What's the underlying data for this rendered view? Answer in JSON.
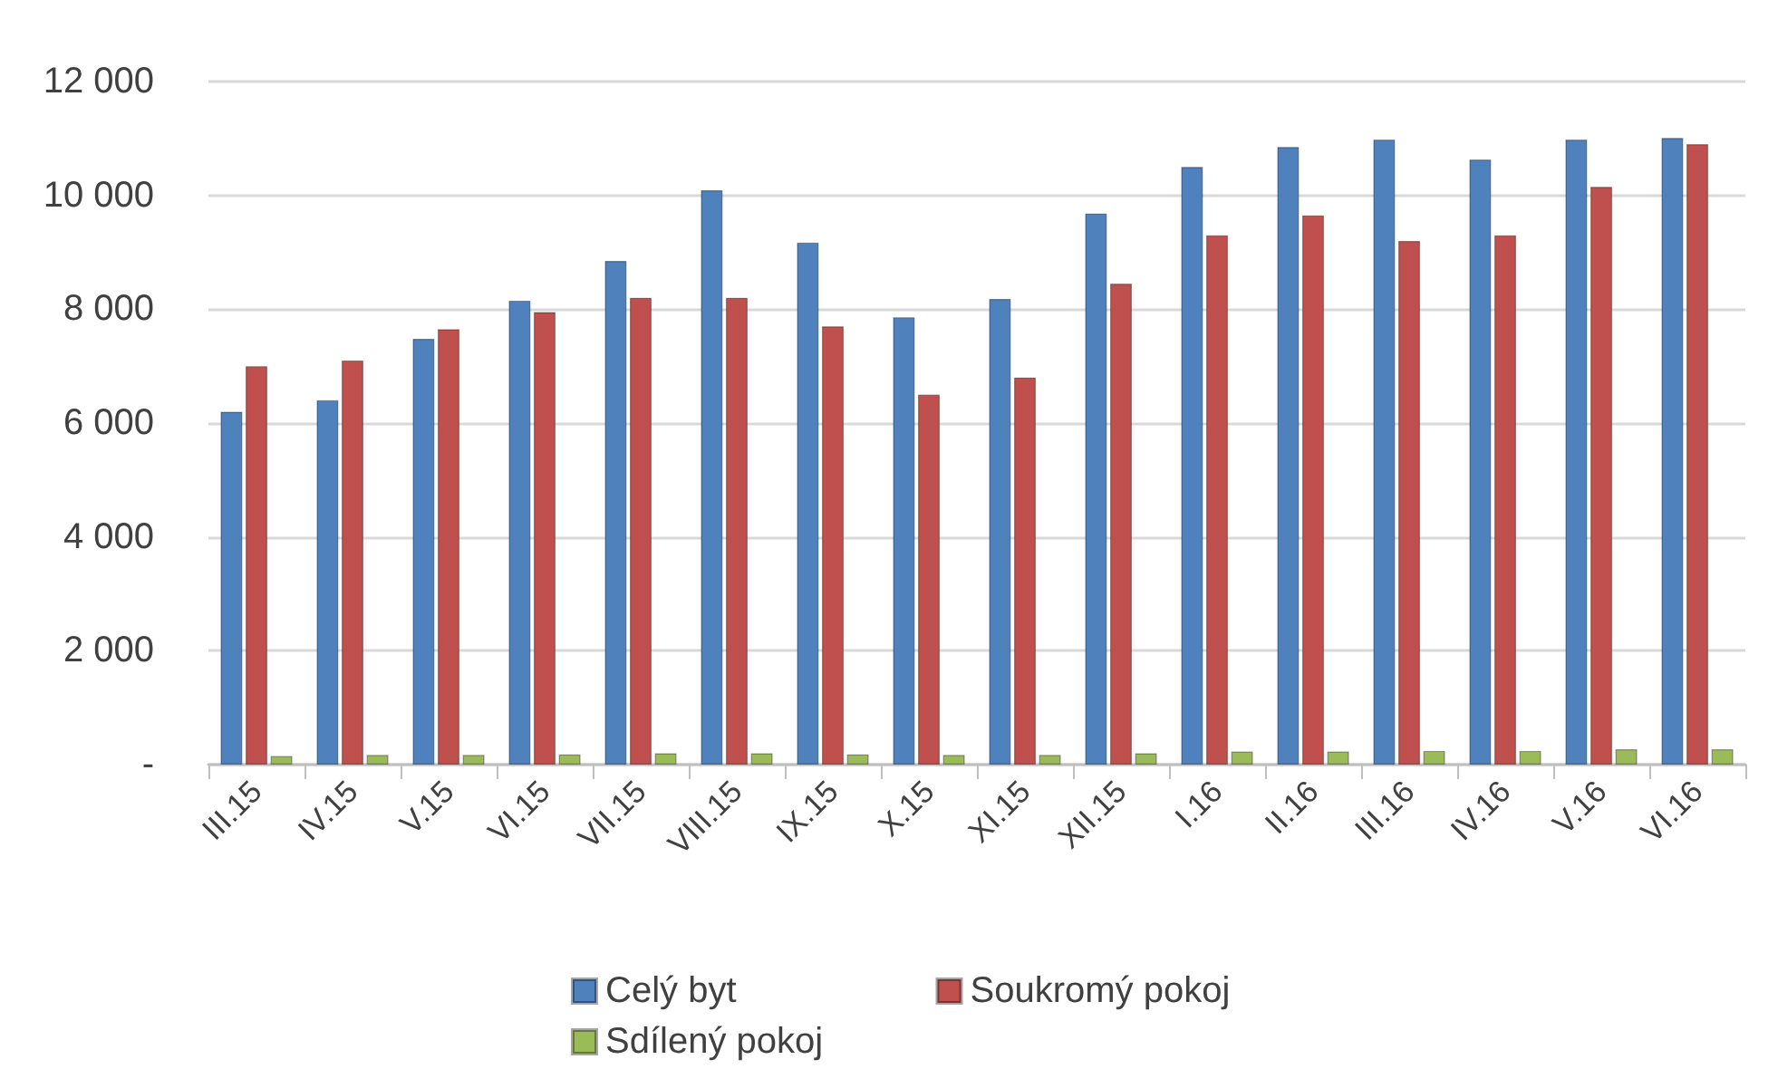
{
  "chart_data": {
    "type": "bar",
    "categories": [
      "III.15",
      "IV.15",
      "V.15",
      "VI.15",
      "VII.15",
      "VIII.15",
      "IX.15",
      "X.15",
      "XI.15",
      "XII.15",
      "I.16",
      "II.16",
      "III.16",
      "IV.16",
      "V.16",
      "VI.16"
    ],
    "series": [
      {
        "name": "Celý byt",
        "color": "#4f81bd",
        "values": [
          6200,
          6400,
          7480,
          8150,
          8850,
          10090,
          9170,
          7860,
          8180,
          9680,
          10500,
          10850,
          10980,
          10630,
          10980,
          11010
        ]
      },
      {
        "name": "Soukromý pokoj",
        "color": "#c0504d",
        "values": [
          7000,
          7100,
          7650,
          7950,
          8200,
          8200,
          7700,
          6500,
          6800,
          8450,
          9300,
          9650,
          9200,
          9300,
          10150,
          10900
        ]
      },
      {
        "name": "Sdílený pokoj",
        "color": "#9bbb59",
        "values": [
          150,
          170,
          170,
          180,
          200,
          200,
          180,
          170,
          170,
          200,
          230,
          230,
          240,
          240,
          270,
          270
        ]
      }
    ],
    "ylim": [
      0,
      12000
    ],
    "yticks": [
      {
        "value": 0,
        "label": "-"
      },
      {
        "value": 2000,
        "label": "2 000"
      },
      {
        "value": 4000,
        "label": "4 000"
      },
      {
        "value": 6000,
        "label": "6 000"
      },
      {
        "value": 8000,
        "label": "8 000"
      },
      {
        "value": 10000,
        "label": "10 000"
      },
      {
        "value": 12000,
        "label": "12 000"
      }
    ],
    "grid": "y",
    "legend": "bottom"
  }
}
